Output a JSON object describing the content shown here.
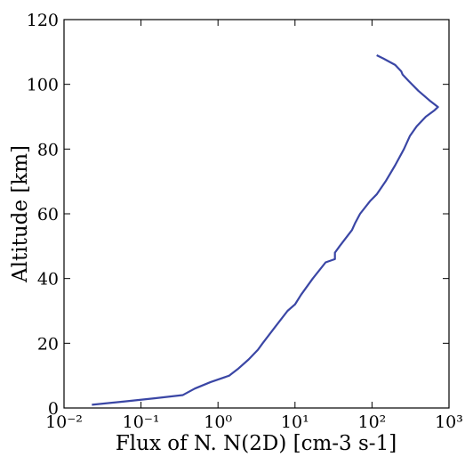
{
  "chart_data": {
    "type": "line",
    "xlabel": "Flux of N. N(2D) [cm-3 s-1]",
    "ylabel": "Altitude [km]",
    "xscale": "log",
    "color": "#3a46a5",
    "x": [
      0.023,
      0.06,
      0.15,
      0.35,
      0.5,
      0.8,
      1.4,
      1.8,
      2.5,
      3.3,
      3.8,
      5.5,
      8,
      10,
      12,
      17,
      25,
      33,
      33,
      38,
      55,
      60,
      70,
      95,
      115,
      150,
      200,
      260,
      310,
      380,
      500,
      650,
      720,
      560,
      400,
      300,
      250,
      240,
      200,
      140,
      115
    ],
    "values": [
      1,
      2,
      3,
      4,
      6,
      8,
      10,
      12,
      15,
      18,
      20,
      25,
      30,
      32,
      35,
      40,
      45,
      46,
      48,
      50,
      55,
      57,
      60,
      64,
      66,
      70,
      75,
      80,
      84,
      87,
      90,
      92,
      93,
      95,
      98,
      101,
      103,
      104,
      106,
      108,
      109
    ],
    "xlim": [
      0.01,
      1000
    ],
    "xticks": [
      {
        "value": 0.01,
        "label": "10⁻²"
      },
      {
        "value": 0.1,
        "label": "10⁻¹"
      },
      {
        "value": 1,
        "label": "10⁰"
      },
      {
        "value": 10,
        "label": "10¹"
      },
      {
        "value": 100,
        "label": "10²"
      },
      {
        "value": 1000,
        "label": "10³"
      }
    ],
    "ylim": [
      0,
      120
    ],
    "yticks": [
      0,
      20,
      40,
      60,
      80,
      100,
      120
    ]
  }
}
